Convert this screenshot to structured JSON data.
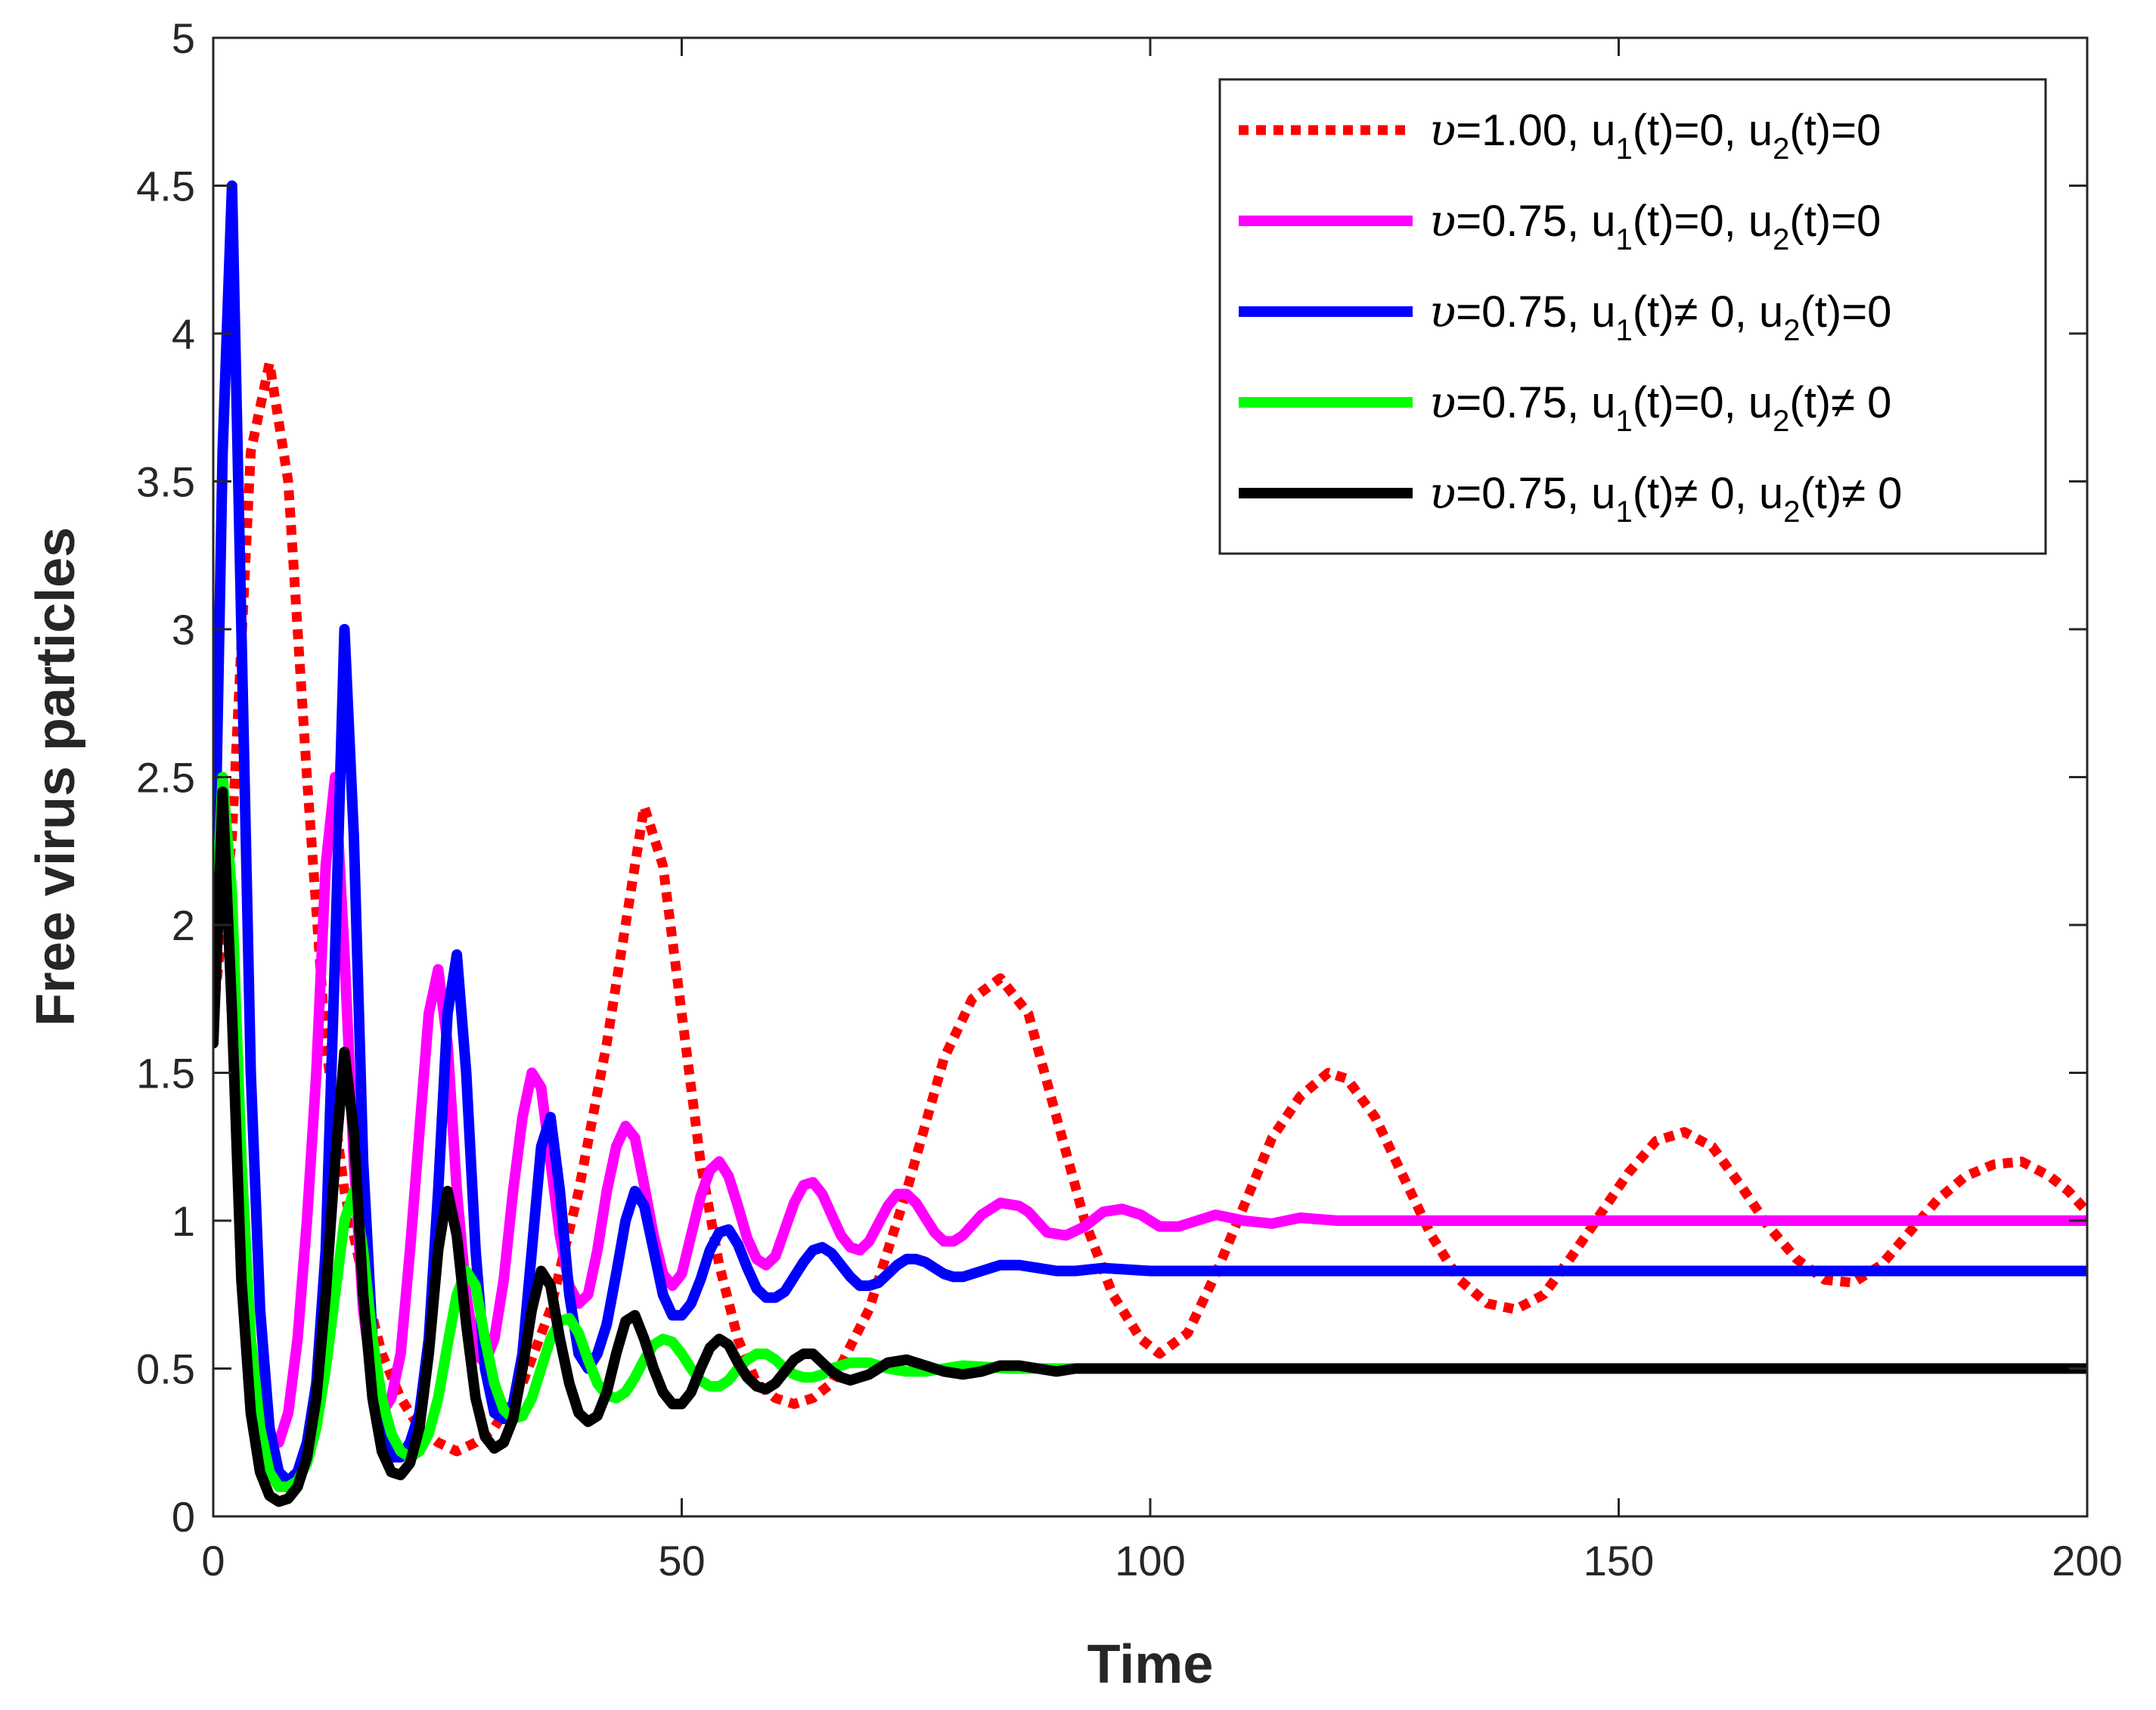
{
  "chart_data": {
    "type": "line",
    "title": "",
    "xlabel": "Time",
    "ylabel": "Free virus particles",
    "xlim": [
      0,
      200
    ],
    "ylim": [
      0,
      5
    ],
    "xticks": [
      0,
      50,
      100,
      150,
      200
    ],
    "xtick_labels": [
      "0",
      "50",
      "100",
      "150",
      "200"
    ],
    "yticks": [
      0,
      0.5,
      1,
      1.5,
      2,
      2.5,
      3,
      3.5,
      4,
      4.5,
      5
    ],
    "ytick_labels": [
      "0",
      "0.5",
      "1",
      "1.5",
      "2",
      "2.5",
      "3",
      "3.5",
      "4",
      "4.5",
      "5"
    ],
    "grid": false,
    "legend_position": "top-right",
    "series": [
      {
        "name": "υ=1.00, u1(t)=0, u2(t)=0",
        "legend": {
          "nu": "υ",
          "p1": "=1.00, u",
          "s1": "1",
          "p2": "(t)=0, u",
          "s2": "2",
          "p3": "(t)=0"
        },
        "color": "#ff0000",
        "style": "dotted",
        "x": [
          0,
          2,
          4,
          6,
          8,
          10,
          12,
          14,
          16,
          18,
          20,
          22,
          24,
          26,
          28,
          30,
          33,
          36,
          39,
          42,
          44,
          46,
          48,
          50,
          52,
          54,
          56,
          58,
          60,
          62,
          64,
          66,
          70,
          74,
          78,
          81,
          84,
          87,
          90,
          93,
          96,
          99,
          101,
          104,
          107,
          110,
          113,
          116,
          119,
          121,
          124,
          127,
          130,
          133,
          136,
          139,
          142,
          145,
          148,
          151,
          154,
          157,
          160,
          163,
          166,
          169,
          172,
          175,
          178,
          181,
          184,
          187,
          190,
          193,
          196,
          198,
          200
        ],
        "values": [
          1.7,
          2.3,
          3.6,
          3.9,
          3.5,
          2.5,
          1.6,
          1.1,
          0.8,
          0.55,
          0.4,
          0.3,
          0.25,
          0.22,
          0.25,
          0.3,
          0.45,
          0.7,
          1.1,
          1.6,
          2.0,
          2.4,
          2.2,
          1.7,
          1.2,
          0.85,
          0.6,
          0.45,
          0.4,
          0.38,
          0.4,
          0.45,
          0.7,
          1.1,
          1.55,
          1.75,
          1.82,
          1.7,
          1.35,
          1.0,
          0.75,
          0.6,
          0.55,
          0.62,
          0.82,
          1.05,
          1.28,
          1.42,
          1.5,
          1.48,
          1.35,
          1.15,
          0.95,
          0.8,
          0.72,
          0.7,
          0.75,
          0.88,
          1.02,
          1.16,
          1.27,
          1.3,
          1.25,
          1.12,
          0.98,
          0.87,
          0.8,
          0.79,
          0.85,
          0.96,
          1.07,
          1.15,
          1.19,
          1.2,
          1.15,
          1.1,
          1.03
        ]
      },
      {
        "name": "υ=0.75, u1(t)=0, u2(t)=0",
        "legend": {
          "nu": "υ",
          "p1": "=0.75, u",
          "s1": "1",
          "p2": "(t)=0, u",
          "s2": "2",
          "p3": "(t)=0"
        },
        "color": "#ff00ff",
        "style": "solid",
        "x": [
          0,
          1,
          2,
          3,
          4,
          5,
          6,
          7,
          8,
          9,
          10,
          11,
          12,
          13,
          14,
          15,
          16,
          17,
          18,
          19,
          20,
          21,
          22,
          23,
          24,
          25,
          26,
          27,
          28,
          29,
          30,
          31,
          32,
          33,
          34,
          35,
          36,
          37,
          38,
          39,
          40,
          41,
          42,
          43,
          44,
          45,
          46,
          47,
          48,
          49,
          50,
          51,
          52,
          53,
          54,
          55,
          56,
          57,
          58,
          59,
          60,
          61,
          62,
          63,
          64,
          65,
          66,
          67,
          68,
          69,
          70,
          71,
          72,
          73,
          74,
          75,
          76,
          77,
          78,
          79,
          80,
          82,
          84,
          86,
          87,
          89,
          91,
          93,
          95,
          97,
          99,
          101,
          103,
          105,
          107,
          110,
          113,
          116,
          120,
          125,
          130,
          140,
          150,
          160,
          170,
          180,
          190,
          200
        ],
        "values": [
          2.0,
          2.5,
          2.0,
          1.2,
          0.6,
          0.35,
          0.25,
          0.25,
          0.35,
          0.6,
          1.0,
          1.5,
          2.2,
          2.5,
          1.9,
          1.2,
          0.7,
          0.45,
          0.35,
          0.4,
          0.55,
          0.9,
          1.3,
          1.7,
          1.85,
          1.6,
          1.1,
          0.75,
          0.55,
          0.52,
          0.6,
          0.8,
          1.1,
          1.35,
          1.5,
          1.45,
          1.2,
          0.95,
          0.78,
          0.72,
          0.75,
          0.9,
          1.1,
          1.25,
          1.32,
          1.28,
          1.12,
          0.95,
          0.82,
          0.78,
          0.82,
          0.95,
          1.08,
          1.17,
          1.2,
          1.15,
          1.05,
          0.94,
          0.87,
          0.85,
          0.88,
          0.97,
          1.06,
          1.12,
          1.13,
          1.09,
          1.02,
          0.95,
          0.91,
          0.9,
          0.93,
          0.99,
          1.05,
          1.09,
          1.09,
          1.06,
          1.01,
          0.96,
          0.93,
          0.93,
          0.95,
          1.02,
          1.06,
          1.05,
          1.03,
          0.96,
          0.95,
          0.98,
          1.03,
          1.04,
          1.02,
          0.98,
          0.98,
          1.0,
          1.02,
          1.0,
          0.99,
          1.01,
          1.0,
          1.0,
          1.0,
          1.0,
          1.0,
          1.0,
          1.0,
          1.0,
          1.0,
          1.0
        ]
      },
      {
        "name": "υ=0.75, u1(t)≠ 0, u2(t)=0",
        "legend": {
          "nu": "υ",
          "p1": "=0.75, u",
          "s1": "1",
          "p2": "(t)≠ 0, u",
          "s2": "2",
          "p3": "(t)=0"
        },
        "color": "#0000ff",
        "style": "solid",
        "x": [
          0,
          1,
          2,
          3,
          4,
          5,
          6,
          7,
          8,
          9,
          10,
          11,
          12,
          13,
          14,
          15,
          16,
          17,
          18,
          19,
          20,
          21,
          22,
          23,
          24,
          25,
          26,
          27,
          28,
          29,
          30,
          31,
          32,
          33,
          34,
          35,
          36,
          37,
          38,
          39,
          40,
          41,
          42,
          43,
          44,
          45,
          46,
          47,
          48,
          49,
          50,
          51,
          52,
          53,
          54,
          55,
          56,
          57,
          58,
          59,
          60,
          61,
          62,
          63,
          64,
          65,
          66,
          67,
          68,
          69,
          70,
          71,
          72,
          73,
          74,
          75,
          76,
          77,
          78,
          79,
          80,
          82,
          84,
          86,
          88,
          90,
          92,
          95,
          100,
          110,
          120,
          140,
          160,
          180,
          200
        ],
        "values": [
          1.9,
          3.6,
          4.5,
          3.0,
          1.5,
          0.7,
          0.3,
          0.15,
          0.12,
          0.15,
          0.25,
          0.45,
          0.9,
          1.9,
          3.0,
          2.3,
          1.2,
          0.6,
          0.3,
          0.2,
          0.2,
          0.25,
          0.35,
          0.6,
          1.1,
          1.7,
          1.9,
          1.5,
          0.9,
          0.5,
          0.35,
          0.33,
          0.38,
          0.55,
          0.9,
          1.25,
          1.35,
          1.1,
          0.75,
          0.55,
          0.5,
          0.55,
          0.65,
          0.82,
          1.0,
          1.1,
          1.05,
          0.9,
          0.75,
          0.68,
          0.68,
          0.72,
          0.8,
          0.9,
          0.96,
          0.97,
          0.92,
          0.84,
          0.77,
          0.74,
          0.74,
          0.76,
          0.81,
          0.86,
          0.9,
          0.91,
          0.89,
          0.85,
          0.81,
          0.78,
          0.78,
          0.79,
          0.82,
          0.85,
          0.87,
          0.87,
          0.86,
          0.84,
          0.82,
          0.81,
          0.81,
          0.83,
          0.85,
          0.85,
          0.84,
          0.83,
          0.83,
          0.84,
          0.83,
          0.83,
          0.83,
          0.83,
          0.83,
          0.83,
          0.83
        ]
      },
      {
        "name": "υ=0.75, u1(t)=0, u2(t)≠ 0",
        "legend": {
          "nu": "υ",
          "p1": "=0.75, u",
          "s1": "1",
          "p2": "(t)=0, u",
          "s2": "2",
          "p3": "(t)≠ 0"
        },
        "color": "#00ff00",
        "style": "solid",
        "x": [
          0,
          1,
          2,
          3,
          4,
          5,
          6,
          7,
          8,
          9,
          10,
          11,
          12,
          13,
          14,
          15,
          16,
          17,
          18,
          19,
          20,
          21,
          22,
          23,
          24,
          25,
          26,
          27,
          28,
          29,
          30,
          31,
          32,
          33,
          34,
          35,
          36,
          37,
          38,
          39,
          40,
          41,
          42,
          43,
          44,
          45,
          46,
          47,
          48,
          49,
          50,
          51,
          52,
          53,
          54,
          55,
          56,
          57,
          58,
          59,
          60,
          61,
          62,
          63,
          64,
          65,
          66,
          68,
          70,
          72,
          74,
          76,
          78,
          80,
          85,
          90,
          100,
          120,
          150,
          200
        ],
        "values": [
          1.8,
          2.5,
          2.1,
          1.2,
          0.6,
          0.3,
          0.15,
          0.1,
          0.1,
          0.12,
          0.18,
          0.3,
          0.5,
          0.75,
          1.0,
          1.1,
          0.9,
          0.6,
          0.4,
          0.28,
          0.22,
          0.2,
          0.22,
          0.28,
          0.4,
          0.58,
          0.75,
          0.83,
          0.78,
          0.6,
          0.45,
          0.36,
          0.33,
          0.34,
          0.4,
          0.5,
          0.6,
          0.66,
          0.67,
          0.62,
          0.53,
          0.45,
          0.41,
          0.4,
          0.42,
          0.47,
          0.53,
          0.58,
          0.6,
          0.59,
          0.55,
          0.5,
          0.46,
          0.44,
          0.44,
          0.46,
          0.5,
          0.53,
          0.55,
          0.55,
          0.53,
          0.5,
          0.48,
          0.47,
          0.47,
          0.48,
          0.5,
          0.52,
          0.52,
          0.5,
          0.49,
          0.49,
          0.5,
          0.51,
          0.5,
          0.5,
          0.5,
          0.5,
          0.5,
          0.5
        ]
      },
      {
        "name": "υ=0.75, u1(t)≠ 0, u2(t)≠ 0",
        "legend": {
          "nu": "υ",
          "p1": "=0.75, u",
          "s1": "1",
          "p2": "(t)≠ 0, u",
          "s2": "2",
          "p3": "(t)≠ 0"
        },
        "color": "#000000",
        "style": "solid",
        "x": [
          0,
          0.5,
          1,
          2,
          3,
          4,
          5,
          6,
          7,
          8,
          9,
          10,
          11,
          12,
          13,
          14,
          15,
          16,
          17,
          18,
          19,
          20,
          21,
          22,
          23,
          24,
          25,
          26,
          27,
          28,
          29,
          30,
          31,
          32,
          33,
          34,
          35,
          36,
          37,
          38,
          39,
          40,
          41,
          42,
          43,
          44,
          45,
          46,
          47,
          48,
          49,
          50,
          51,
          52,
          53,
          54,
          55,
          56,
          57,
          58,
          59,
          60,
          61,
          62,
          63,
          64,
          65,
          66,
          67,
          68,
          70,
          72,
          74,
          76,
          78,
          80,
          82,
          84,
          86,
          88,
          90,
          92,
          94,
          96,
          100,
          110,
          120,
          150,
          200
        ],
        "values": [
          1.6,
          2.0,
          2.45,
          1.7,
          0.8,
          0.35,
          0.15,
          0.07,
          0.05,
          0.06,
          0.1,
          0.2,
          0.4,
          0.75,
          1.2,
          1.57,
          1.3,
          0.75,
          0.4,
          0.22,
          0.15,
          0.14,
          0.18,
          0.3,
          0.55,
          0.9,
          1.1,
          0.95,
          0.65,
          0.4,
          0.27,
          0.23,
          0.25,
          0.33,
          0.5,
          0.7,
          0.83,
          0.78,
          0.6,
          0.45,
          0.35,
          0.32,
          0.34,
          0.42,
          0.55,
          0.66,
          0.68,
          0.6,
          0.5,
          0.42,
          0.38,
          0.38,
          0.42,
          0.5,
          0.57,
          0.6,
          0.58,
          0.52,
          0.47,
          0.44,
          0.43,
          0.45,
          0.49,
          0.53,
          0.55,
          0.55,
          0.52,
          0.49,
          0.47,
          0.46,
          0.48,
          0.52,
          0.53,
          0.51,
          0.49,
          0.48,
          0.49,
          0.51,
          0.51,
          0.5,
          0.49,
          0.5,
          0.5,
          0.5,
          0.5,
          0.5,
          0.5,
          0.5,
          0.5
        ]
      }
    ]
  }
}
